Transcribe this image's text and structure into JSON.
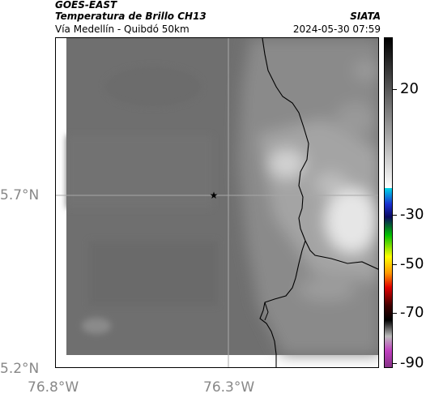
{
  "header": {
    "satellite": "GOES-EAST",
    "product": "Temperatura de Brillo CH13",
    "region": "Vía Medellín - Quibdó 50km",
    "organization": "SIATA",
    "timestamp": "2024-05-30 07:59"
  },
  "axes": {
    "lat_labels": [
      "5.7°N",
      "5.2°N"
    ],
    "lon_labels": [
      "76.8°W",
      "76.3°W"
    ]
  },
  "colorbar": {
    "tick_labels": [
      "20",
      "-30",
      "-50",
      "-70",
      "-90"
    ],
    "colors": {
      "cyan": "#00c8e0",
      "blue": "#1a2fd0",
      "green": "#00c000",
      "yellow": "#ffff00",
      "red": "#e00000",
      "magenta": "#c040c0"
    }
  },
  "map": {
    "marker_icon": "star-icon",
    "background_gray": "#6e6e6e",
    "coastline_color": "#000000"
  }
}
